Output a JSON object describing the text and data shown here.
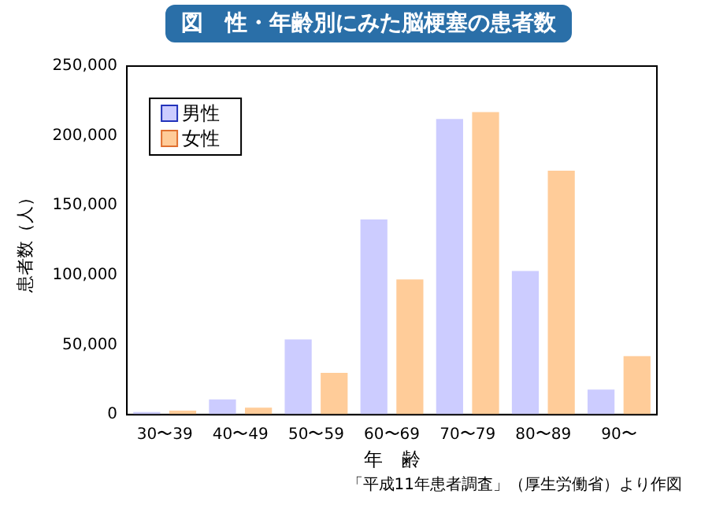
{
  "chart_data": {
    "type": "bar",
    "title": "図　性・年齢別にみた脳梗塞の患者数",
    "xlabel": "年　齢",
    "ylabel": "患者数（人）",
    "categories": [
      "30〜39",
      "40〜49",
      "50〜59",
      "60〜69",
      "70〜79",
      "80〜89",
      "90〜"
    ],
    "series": [
      {
        "name": "男性",
        "color": "#ccccff",
        "values": [
          2000,
          11000,
          54000,
          140000,
          212000,
          103000,
          18000
        ]
      },
      {
        "name": "女性",
        "color": "#ffcc99",
        "values": [
          3000,
          5000,
          30000,
          97000,
          217000,
          175000,
          42000
        ]
      }
    ],
    "ylim": [
      0,
      250000
    ],
    "yticks": [
      0,
      {
        "value": 50000,
        "label": "50,000"
      },
      {
        "value": 100000,
        "label": "100,000"
      },
      {
        "value": 150000,
        "label": "150,000"
      },
      {
        "value": 200000,
        "label": "200,000"
      },
      {
        "value": 250000,
        "label": "250,000"
      }
    ],
    "grid": false,
    "legend": "top left",
    "annotations": [
      "「平成11年患者調査」（厚生労働省）より作図"
    ]
  }
}
